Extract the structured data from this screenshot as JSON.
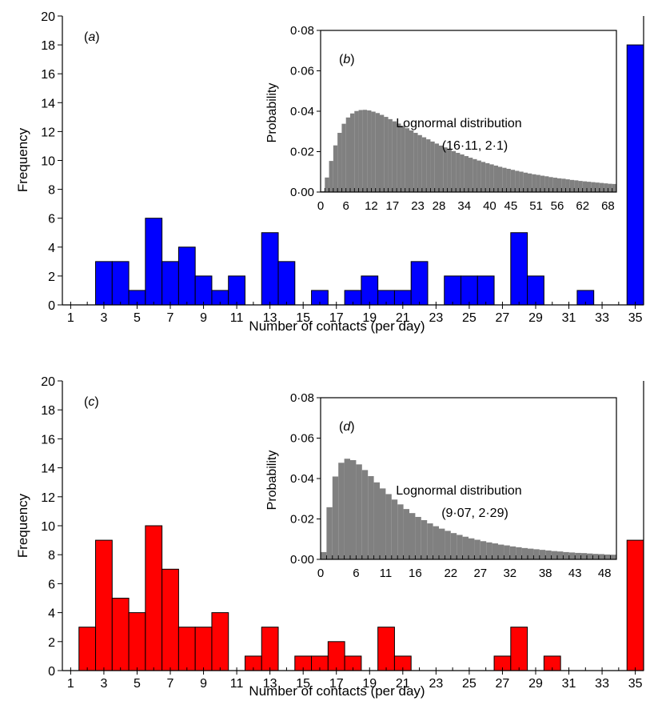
{
  "chart_data": [
    {
      "type": "bar",
      "panel_label": "(a)",
      "xlabel": "Number of contacts (per day)",
      "ylabel": "Frequency",
      "ylim": [
        0,
        20
      ],
      "xlim": [
        1,
        35
      ],
      "y_ticks": [
        "0",
        "2",
        "4",
        "6",
        "8",
        "10",
        "12",
        "14",
        "16",
        "18",
        "20"
      ],
      "x_ticks": [
        "1",
        "3",
        "5",
        "7",
        "9",
        "11",
        "13",
        "15",
        "17",
        "19",
        "21",
        "23",
        "25",
        "27",
        "29",
        "31",
        "33",
        "35"
      ],
      "categories": [
        1,
        2,
        3,
        4,
        5,
        6,
        7,
        8,
        9,
        10,
        11,
        12,
        13,
        14,
        15,
        16,
        17,
        18,
        19,
        20,
        21,
        22,
        23,
        24,
        25,
        26,
        27,
        28,
        29,
        30,
        31,
        32,
        33,
        34,
        35
      ],
      "values": [
        0,
        0,
        3,
        3,
        1,
        6,
        3,
        4,
        2,
        1,
        2,
        0,
        5,
        3,
        0,
        1,
        0,
        1,
        2,
        1,
        1,
        3,
        0,
        2,
        2,
        2,
        0,
        5,
        2,
        0,
        0,
        1,
        0,
        0,
        18
      ],
      "color": "#0000ff",
      "inset": {
        "type": "bar",
        "panel_label": "(b)",
        "ylabel": "Probability",
        "ylim": [
          0,
          0.08
        ],
        "xlim": [
          0,
          70
        ],
        "y_ticks": [
          "0·00",
          "0·02",
          "0·04",
          "0·06",
          "0·08"
        ],
        "x_ticks": [
          "0",
          "6",
          "12",
          "17",
          "23",
          "28",
          "34",
          "40",
          "45",
          "51",
          "56",
          "62",
          "68"
        ],
        "annotation": [
          "Lognormal distribution",
          "(16·11, 2·1)"
        ],
        "color": "#808080",
        "values": [
          0.0004,
          0.0072,
          0.0154,
          0.0231,
          0.0293,
          0.0338,
          0.0369,
          0.0389,
          0.0401,
          0.0406,
          0.0407,
          0.0404,
          0.0398,
          0.0391,
          0.0382,
          0.0372,
          0.0361,
          0.035,
          0.0339,
          0.0328,
          0.0316,
          0.0305,
          0.0293,
          0.0282,
          0.0271,
          0.0261,
          0.025,
          0.024,
          0.023,
          0.0221,
          0.0211,
          0.0203,
          0.0194,
          0.0186,
          0.0178,
          0.017,
          0.0163,
          0.0156,
          0.0149,
          0.0143,
          0.0137,
          0.0131,
          0.0125,
          0.012,
          0.0115,
          0.011,
          0.0105,
          0.0101,
          0.0096,
          0.0092,
          0.0088,
          0.0085,
          0.0081,
          0.0078,
          0.0074,
          0.0071,
          0.0068,
          0.0066,
          0.0063,
          0.006,
          0.0058,
          0.0055,
          0.0053,
          0.0051,
          0.0049,
          0.0047,
          0.0045,
          0.0043,
          0.0041,
          0.004
        ]
      }
    },
    {
      "type": "bar",
      "panel_label": "(c)",
      "xlabel": "Number of contacts (per day)",
      "ylabel": "Frequency",
      "ylim": [
        0,
        20
      ],
      "xlim": [
        1,
        35
      ],
      "y_ticks": [
        "0",
        "2",
        "4",
        "6",
        "8",
        "10",
        "12",
        "14",
        "16",
        "18",
        "20"
      ],
      "x_ticks": [
        "1",
        "3",
        "5",
        "7",
        "9",
        "11",
        "13",
        "15",
        "17",
        "19",
        "21",
        "23",
        "25",
        "27",
        "29",
        "31",
        "33",
        "35"
      ],
      "categories": [
        1,
        2,
        3,
        4,
        5,
        6,
        7,
        8,
        9,
        10,
        11,
        12,
        13,
        14,
        15,
        16,
        17,
        18,
        19,
        20,
        21,
        22,
        23,
        24,
        25,
        26,
        27,
        28,
        29,
        30,
        31,
        32,
        33,
        34,
        35
      ],
      "values": [
        0,
        3,
        9,
        5,
        4,
        10,
        7,
        3,
        3,
        4,
        0,
        1,
        3,
        0,
        1,
        1,
        2,
        1,
        0,
        3,
        1,
        0,
        0,
        0,
        0,
        0,
        1,
        3,
        0,
        1,
        0,
        0,
        0,
        0,
        9
      ],
      "color": "#ff0000",
      "inset": {
        "type": "bar",
        "panel_label": "(d)",
        "ylabel": "Probability",
        "ylim": [
          0,
          0.08
        ],
        "xlim": [
          0,
          50
        ],
        "y_ticks": [
          "0·00",
          "0·02",
          "0·04",
          "0·06",
          "0·08"
        ],
        "x_ticks": [
          "0",
          "6",
          "11",
          "16",
          "22",
          "27",
          "32",
          "38",
          "43",
          "48"
        ],
        "annotation": [
          "Lognormal distribution",
          "(9·07, 2·29)"
        ],
        "color": "#808080",
        "values": [
          0.0036,
          0.0258,
          0.041,
          0.0478,
          0.0498,
          0.0491,
          0.047,
          0.0442,
          0.0412,
          0.0381,
          0.0351,
          0.0323,
          0.0296,
          0.0272,
          0.0249,
          0.0229,
          0.021,
          0.0194,
          0.0178,
          0.0164,
          0.0152,
          0.0141,
          0.013,
          0.0121,
          0.0112,
          0.0104,
          0.0097,
          0.009,
          0.0084,
          0.0079,
          0.0073,
          0.0069,
          0.0064,
          0.006,
          0.0056,
          0.0053,
          0.005,
          0.0047,
          0.0044,
          0.0041,
          0.0039,
          0.0036,
          0.0034,
          0.0032,
          0.0031,
          0.0029,
          0.0027,
          0.0026,
          0.0024,
          0.0023
        ]
      }
    }
  ]
}
